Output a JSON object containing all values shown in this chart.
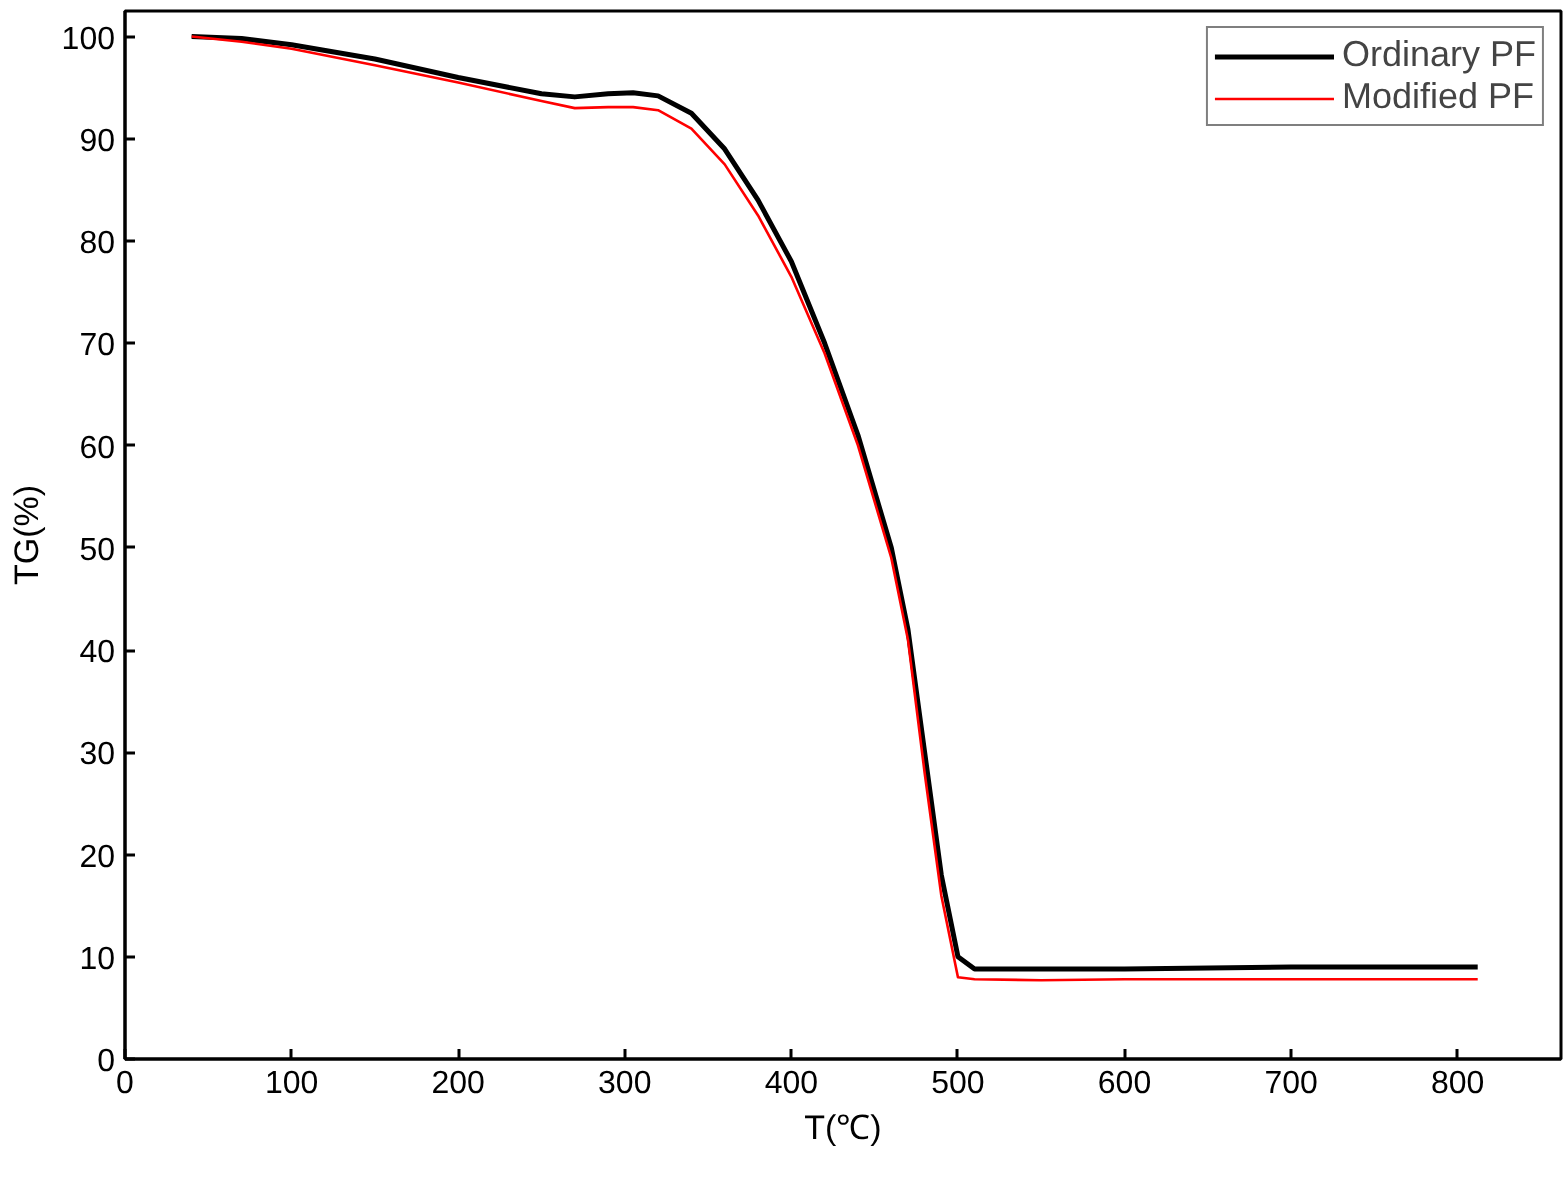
{
  "chart_data": {
    "type": "line",
    "xlabel": "T(℃)",
    "ylabel": "TG(%)",
    "xlim": [
      0,
      862
    ],
    "ylim": [
      0,
      102.5
    ],
    "xticks": [
      0,
      100,
      200,
      300,
      400,
      500,
      600,
      700,
      800
    ],
    "yticks": [
      0,
      10,
      20,
      30,
      40,
      50,
      60,
      70,
      80,
      90,
      100
    ],
    "grid": false,
    "legend": "top right",
    "marker": "none",
    "line_style": "solid",
    "series": [
      {
        "name": "Ordinary PF",
        "color": "#000000",
        "x": [
          40,
          70,
          100,
          150,
          200,
          250,
          270,
          290,
          305,
          320,
          340,
          360,
          380,
          400,
          420,
          440,
          460,
          470,
          480,
          490,
          500,
          510,
          550,
          600,
          700,
          812
        ],
        "values": [
          100,
          99.8,
          99.2,
          97.8,
          96,
          94.4,
          94.1,
          94.4,
          94.5,
          94.2,
          92.5,
          89,
          84,
          78,
          70,
          61,
          50,
          42,
          30,
          18,
          10,
          8.8,
          8.8,
          8.8,
          9,
          9
        ]
      },
      {
        "name": "Modified PF",
        "color": "#ff0000",
        "x": [
          40,
          70,
          100,
          150,
          200,
          250,
          270,
          290,
          305,
          320,
          340,
          360,
          380,
          400,
          420,
          440,
          460,
          470,
          480,
          490,
          500,
          510,
          550,
          600,
          700,
          812
        ],
        "values": [
          100,
          99.5,
          98.8,
          97.2,
          95.5,
          93.7,
          93,
          93.1,
          93.1,
          92.8,
          91,
          87.5,
          82.5,
          76.5,
          69,
          60,
          49,
          41,
          28,
          16,
          8,
          7.8,
          7.7,
          7.8,
          7.8,
          7.8
        ]
      }
    ]
  }
}
